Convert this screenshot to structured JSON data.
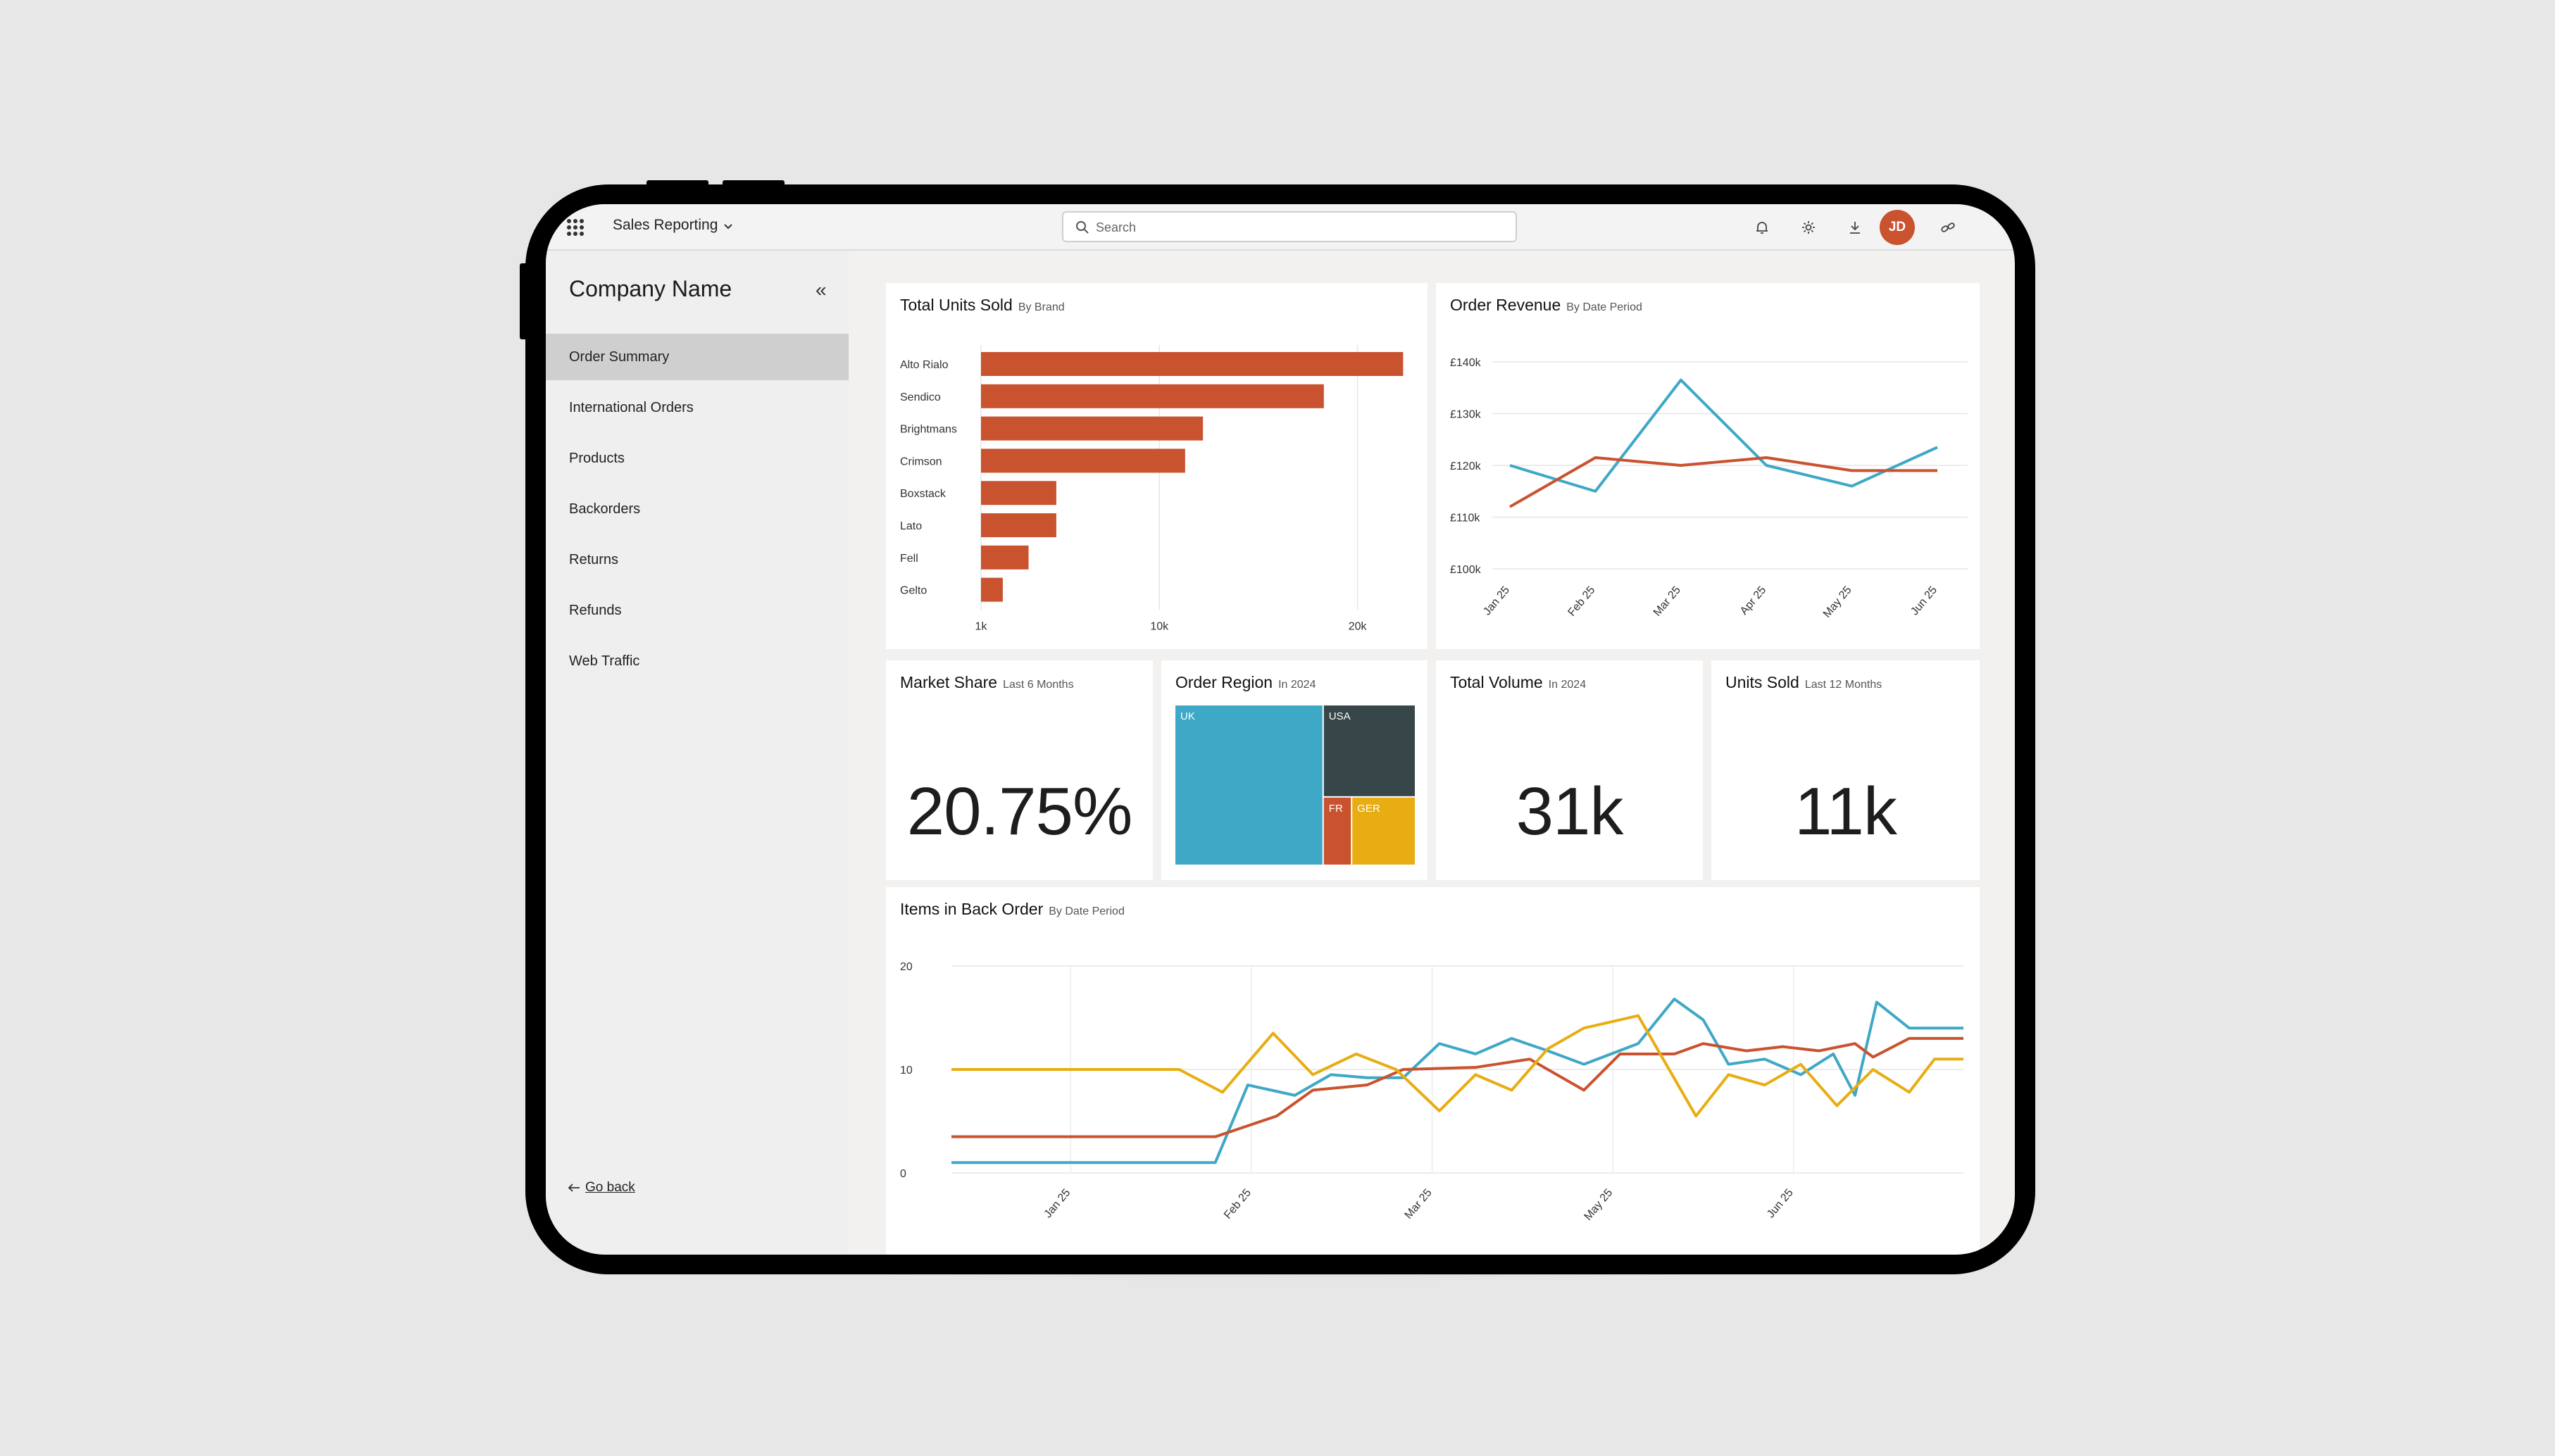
{
  "topbar": {
    "app_title": "Sales Reporting",
    "search_placeholder": "Search",
    "avatar_initials": "JD",
    "icons": [
      "apps-grid-icon",
      "chevron-down-icon",
      "search-icon",
      "bell-icon",
      "gear-icon",
      "download-icon",
      "help-icon",
      "link-icon"
    ]
  },
  "sidebar": {
    "company_name": "Company Name",
    "collapse_glyph": "«",
    "items": [
      {
        "label": "Order Summary",
        "active": true
      },
      {
        "label": "International Orders",
        "active": false
      },
      {
        "label": "Products",
        "active": false
      },
      {
        "label": "Backorders",
        "active": false
      },
      {
        "label": "Returns",
        "active": false
      },
      {
        "label": "Refunds",
        "active": false
      },
      {
        "label": "Web Traffic",
        "active": false
      }
    ],
    "go_back": "Go back"
  },
  "cards": {
    "units_by_brand": {
      "title": "Total Units Sold",
      "subtitle": "By Brand"
    },
    "order_revenue": {
      "title": "Order Revenue",
      "subtitle": "By Date Period"
    },
    "market_share": {
      "title": "Market Share",
      "subtitle": "Last 6 Months",
      "value": "20.75%"
    },
    "order_region": {
      "title": "Order Region",
      "subtitle": "In 2024"
    },
    "total_volume": {
      "title": "Total Volume",
      "subtitle": "In 2024",
      "value": "31k"
    },
    "units_sold": {
      "title": "Units Sold",
      "subtitle": "Last 12 Months",
      "value": "11k"
    },
    "back_order": {
      "title": "Items in Back Order",
      "subtitle": "By Date Period"
    }
  },
  "colors": {
    "orange": "#c9522f",
    "blue": "#3fa8c6",
    "yellow": "#e8ad12",
    "dark": "#374649",
    "accent_avatar": "#c9522f"
  },
  "chart_data": [
    {
      "id": "units_by_brand",
      "type": "bar",
      "orientation": "horizontal",
      "categories": [
        "Alto Rialo",
        "Sendico",
        "Brightmans",
        "Crimson",
        "Boxstack",
        "Lato",
        "Fell",
        "Gelto"
      ],
      "values": [
        22300,
        18300,
        12200,
        11300,
        4800,
        4800,
        3400,
        2100
      ],
      "x_ticks": [
        {
          "value": 1000,
          "label": "1k"
        },
        {
          "value": 10000,
          "label": "10k"
        },
        {
          "value": 20000,
          "label": "20k"
        }
      ],
      "xlim": [
        1000,
        22500
      ],
      "grid": true
    },
    {
      "id": "order_revenue",
      "type": "line",
      "x": [
        "Jan 25",
        "Feb 25",
        "Mar 25",
        "Apr 25",
        "May 25",
        "Jun 25"
      ],
      "y_ticks": [
        {
          "value": 100,
          "label": "£100k"
        },
        {
          "value": 110,
          "label": "£110k"
        },
        {
          "value": 120,
          "label": "£120k"
        },
        {
          "value": 130,
          "label": "£130k"
        },
        {
          "value": 140,
          "label": "£140k"
        }
      ],
      "ylim": [
        100,
        140
      ],
      "series": [
        {
          "color": "#3fa8c6",
          "values": [
            120,
            115,
            136.5,
            120,
            116,
            123.5
          ]
        },
        {
          "color": "#c9522f",
          "values": [
            112,
            121.5,
            120,
            121.5,
            119,
            119
          ]
        }
      ],
      "grid": true
    },
    {
      "id": "order_region",
      "type": "treemap",
      "items": [
        {
          "label": "UK",
          "value": 62,
          "color": "#3fa8c6"
        },
        {
          "label": "USA",
          "value": 22,
          "color": "#374649"
        },
        {
          "label": "FR",
          "value": 5,
          "color": "#c9522f"
        },
        {
          "label": "GER",
          "value": 11,
          "color": "#e8ad12"
        }
      ]
    },
    {
      "id": "back_order",
      "type": "line",
      "x_ticks": [
        "Jan 25",
        "Feb 25",
        "Mar 25",
        "May 25",
        "Jun 25"
      ],
      "y_ticks": [
        0,
        10,
        20
      ],
      "ylim": [
        0,
        20
      ],
      "xlim": [
        0,
        28
      ],
      "tick_positions": [
        3.3,
        8.3,
        13.3,
        18.3,
        23.3
      ],
      "series": [
        {
          "color": "#3fa8c6",
          "points": [
            [
              0,
              1
            ],
            [
              7.3,
              1
            ],
            [
              8.2,
              8.5
            ],
            [
              9.5,
              7.5
            ],
            [
              10.5,
              9.5
            ],
            [
              11.5,
              9.2
            ],
            [
              12.5,
              9.2
            ],
            [
              13.5,
              12.5
            ],
            [
              14.5,
              11.5
            ],
            [
              15.5,
              13
            ],
            [
              16.5,
              11.8
            ],
            [
              17.5,
              10.5
            ],
            [
              19,
              12.5
            ],
            [
              20,
              16.8
            ],
            [
              20.8,
              14.8
            ],
            [
              21.5,
              10.5
            ],
            [
              22.5,
              11
            ],
            [
              23.5,
              9.5
            ],
            [
              24.4,
              11.5
            ],
            [
              25,
              7.5
            ],
            [
              25.6,
              16.5
            ],
            [
              26.5,
              14
            ],
            [
              28,
              14
            ]
          ]
        },
        {
          "color": "#c9522f",
          "points": [
            [
              0,
              3.5
            ],
            [
              7.3,
              3.5
            ],
            [
              9,
              5.5
            ],
            [
              10,
              8
            ],
            [
              11.5,
              8.5
            ],
            [
              12.5,
              10
            ],
            [
              14.5,
              10.2
            ],
            [
              16,
              11
            ],
            [
              17.5,
              8
            ],
            [
              18.5,
              11.5
            ],
            [
              20,
              11.5
            ],
            [
              20.8,
              12.5
            ],
            [
              22,
              11.8
            ],
            [
              23,
              12.2
            ],
            [
              24,
              11.8
            ],
            [
              25,
              12.5
            ],
            [
              25.5,
              11.2
            ],
            [
              26.5,
              13
            ],
            [
              28,
              13
            ]
          ]
        },
        {
          "color": "#e8ad12",
          "points": [
            [
              0,
              10
            ],
            [
              6.3,
              10
            ],
            [
              7.5,
              7.8
            ],
            [
              8.9,
              13.5
            ],
            [
              10,
              9.5
            ],
            [
              11.2,
              11.5
            ],
            [
              12.3,
              10
            ],
            [
              13.5,
              6
            ],
            [
              14.5,
              9.5
            ],
            [
              15.5,
              8
            ],
            [
              16.5,
              12
            ],
            [
              17.5,
              14
            ],
            [
              19,
              15.2
            ],
            [
              20.6,
              5.5
            ],
            [
              21.5,
              9.5
            ],
            [
              22.5,
              8.5
            ],
            [
              23.5,
              10.5
            ],
            [
              24.5,
              6.5
            ],
            [
              25.5,
              10
            ],
            [
              26.5,
              7.8
            ],
            [
              27.2,
              11
            ],
            [
              28,
              11
            ]
          ]
        }
      ],
      "grid": true
    }
  ]
}
